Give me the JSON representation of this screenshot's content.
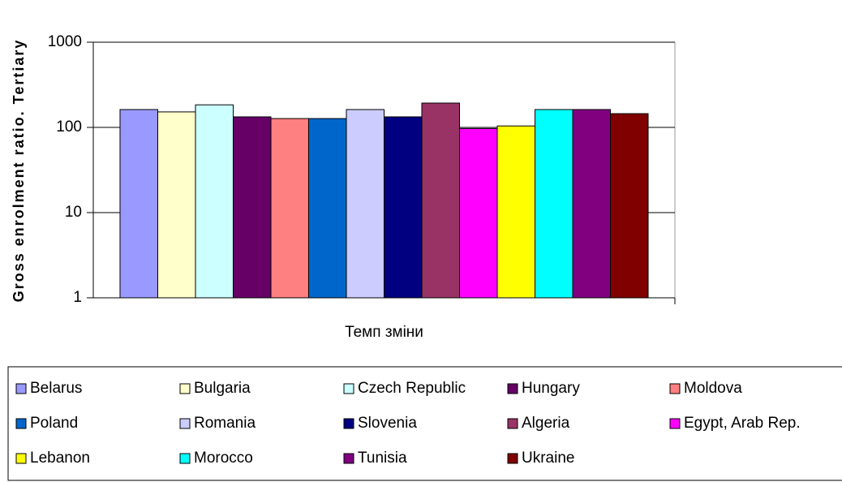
{
  "chart_data": {
    "type": "bar",
    "y_label": "Gross enrolment ratio. Tertiary",
    "categories": [
      "Темп зміни"
    ],
    "series": [
      {
        "name": "Belarus",
        "color": "#9999ff",
        "values": [
          162
        ]
      },
      {
        "name": "Bulgaria",
        "color": "#ffffcc",
        "values": [
          152
        ]
      },
      {
        "name": "Czech Republic",
        "color": "#ccffff",
        "values": [
          184
        ]
      },
      {
        "name": "Hungary",
        "color": "#660066",
        "values": [
          133
        ]
      },
      {
        "name": "Moldova",
        "color": "#ff8080",
        "values": [
          127
        ]
      },
      {
        "name": "Poland",
        "color": "#0066cc",
        "values": [
          127
        ]
      },
      {
        "name": "Romania",
        "color": "#ccccff",
        "values": [
          162
        ]
      },
      {
        "name": "Slovenia",
        "color": "#000080",
        "values": [
          133
        ]
      },
      {
        "name": "Algeria",
        "color": "#993366",
        "values": [
          193
        ]
      },
      {
        "name": "Egypt, Arab Rep.",
        "color": "#ff00ff",
        "values": [
          97
        ]
      },
      {
        "name": "Lebanon",
        "color": "#ffff00",
        "values": [
          104
        ]
      },
      {
        "name": "Morocco",
        "color": "#00ffff",
        "values": [
          162
        ]
      },
      {
        "name": "Tunisia",
        "color": "#800080",
        "values": [
          162
        ]
      },
      {
        "name": "Ukraine",
        "color": "#800000",
        "values": [
          145
        ]
      }
    ],
    "ylim": [
      1,
      1000
    ],
    "yticks": [
      1,
      10,
      100,
      1000
    ],
    "log_y": true,
    "grid": true,
    "legend": "bottom"
  }
}
